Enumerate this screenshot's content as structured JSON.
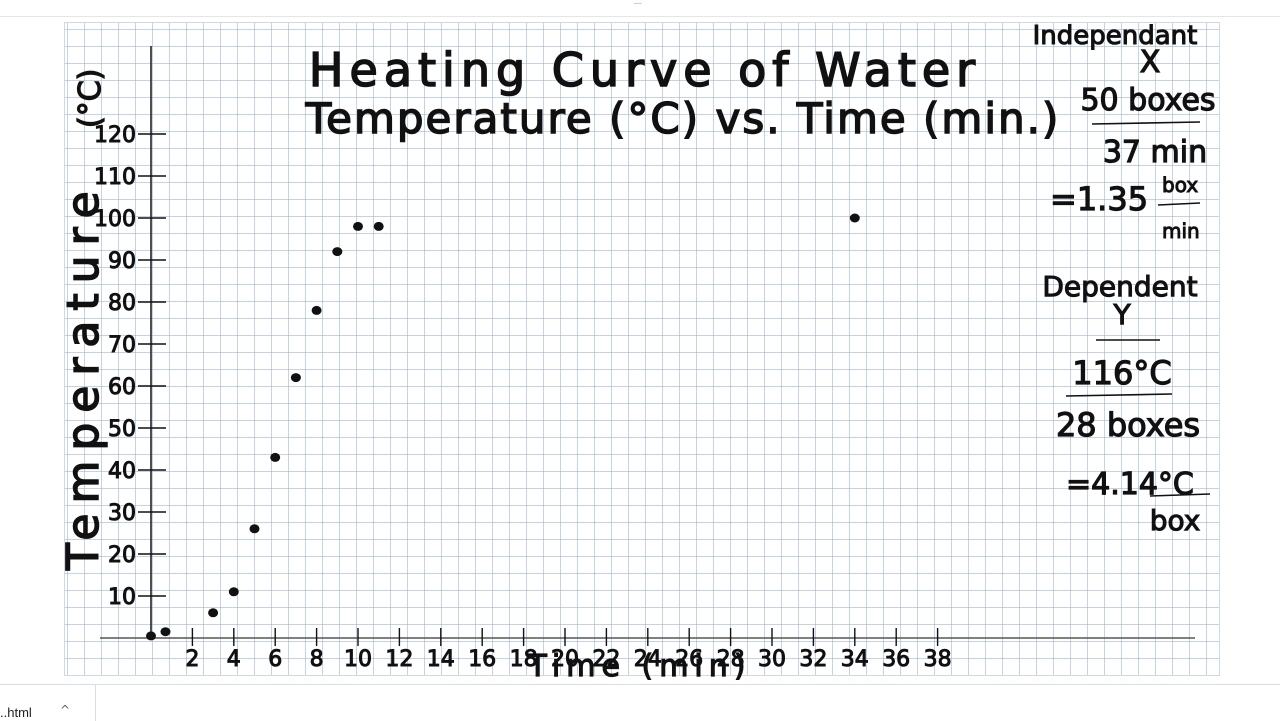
{
  "chart_data": {
    "type": "scatter",
    "title": "Heating Curve of Water",
    "subtitle": "Temperature (°C) vs. Time (min.)",
    "ylabel": "Temperature",
    "ylabel_unit": "(°C)",
    "xlabel": "Time (min)",
    "xlim": [
      0,
      40
    ],
    "ylim": [
      0,
      125
    ],
    "yticks": [
      10,
      20,
      30,
      40,
      50,
      60,
      70,
      80,
      90,
      100,
      110,
      120
    ],
    "xtick_labels": [
      "2",
      "4",
      "6",
      "8",
      "10",
      "12",
      "14",
      "16",
      "18",
      "20",
      "22",
      "24",
      "26",
      "28",
      "30",
      "32",
      "34",
      "36",
      "38"
    ],
    "grid": true,
    "points": [
      {
        "x": 0,
        "y": 0.5
      },
      {
        "x": 0.7,
        "y": 1.5
      },
      {
        "x": 3,
        "y": 6
      },
      {
        "x": 4,
        "y": 11
      },
      {
        "x": 5,
        "y": 26
      },
      {
        "x": 6,
        "y": 43
      },
      {
        "x": 7,
        "y": 62
      },
      {
        "x": 8,
        "y": 78
      },
      {
        "x": 9,
        "y": 92
      },
      {
        "x": 10,
        "y": 98
      },
      {
        "x": 11,
        "y": 98
      },
      {
        "x": 34,
        "y": 100
      }
    ]
  },
  "notes": {
    "independent_label": "Independant",
    "independent_axis": "X",
    "x_fraction_top": "50 boxes",
    "x_fraction_bottom": "37 min",
    "x_result": "=1.35",
    "x_result_unit_top": "box",
    "x_result_unit_bottom": "min",
    "dependent_label": "Dependent",
    "dependent_axis": "Y",
    "y_fraction_top": "116°C",
    "y_fraction_bottom": "28 boxes",
    "y_result": "=4.14°C",
    "y_result_unit_bottom": "box"
  },
  "download_bar": {
    "file_name": "..html",
    "chevron": "^"
  }
}
